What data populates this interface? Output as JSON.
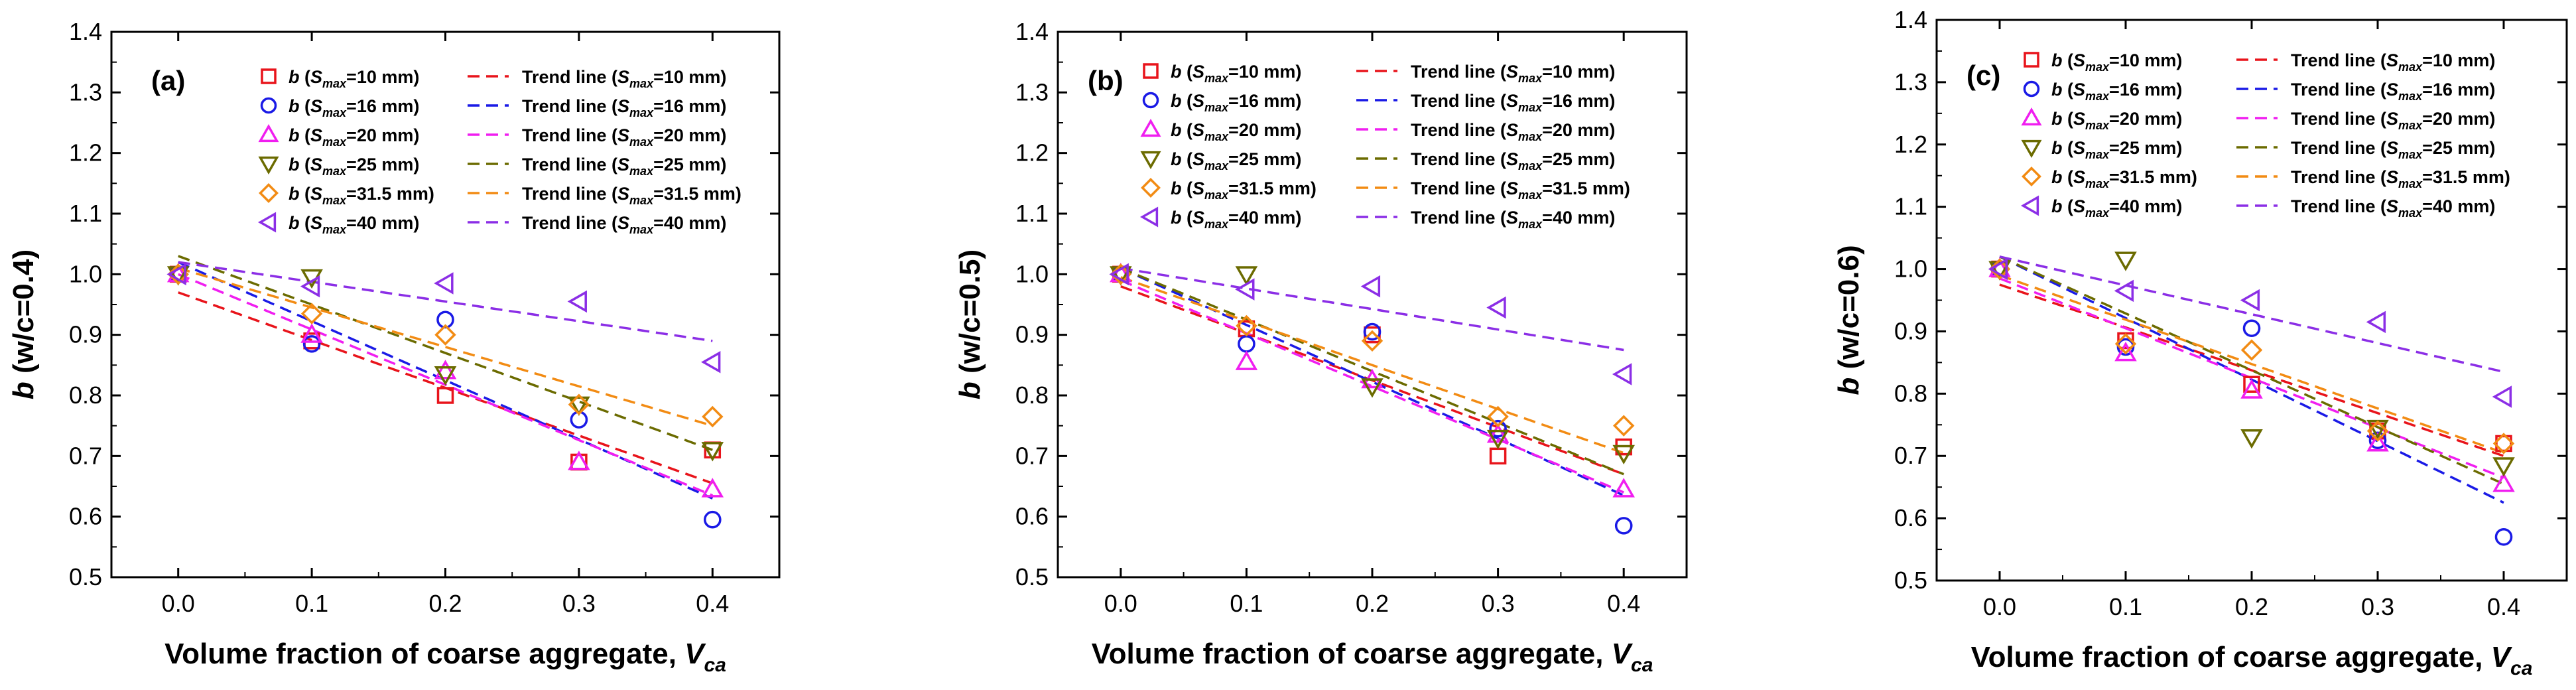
{
  "legend_labels": {
    "b": "b",
    "open": " (",
    "S": "S",
    "max": "max",
    "trend": "Trend line (",
    "close": ")"
  },
  "series_meta": [
    {
      "smax": "=10 mm",
      "color": "#e8141b",
      "marker": "square"
    },
    {
      "smax": "=16 mm",
      "color": "#1a1ae6",
      "marker": "circle"
    },
    {
      "smax": "=20 mm",
      "color": "#f01ef0",
      "marker": "triangle-up"
    },
    {
      "smax": "=25 mm",
      "color": "#6b6b00",
      "marker": "triangle-down"
    },
    {
      "smax": "=31.5 mm",
      "color": "#f28b13",
      "marker": "diamond"
    },
    {
      "smax": "=40 mm",
      "color": "#8b2ee6",
      "marker": "triangle-left"
    }
  ],
  "chart_data": [
    {
      "type": "scatter",
      "panel_label": "(a)",
      "xlabel": "Volume fraction of coarse aggregate, ",
      "xlabel_sym": "V",
      "xlabel_sub": "ca",
      "ylabel_sym": "b",
      "ylabel_rest": " (w/c=0.4)",
      "xlim": [
        -0.05,
        0.45
      ],
      "ylim": [
        0.5,
        1.4
      ],
      "xticks": [
        "0.0",
        "0.1",
        "0.2",
        "0.3",
        "0.4"
      ],
      "yticks": [
        "0.5",
        "0.6",
        "0.7",
        "0.8",
        "0.9",
        "1.0",
        "1.1",
        "1.2",
        "1.3",
        "1.4"
      ],
      "x": [
        0,
        0.1,
        0.2,
        0.3,
        0.4
      ],
      "series": [
        {
          "name": "Smax=10 mm",
          "values": [
            1.0,
            0.89,
            0.8,
            0.69,
            0.71
          ],
          "trend": [
            0.97,
            0.655
          ]
        },
        {
          "name": "Smax=16 mm",
          "values": [
            1.0,
            0.885,
            0.925,
            0.76,
            0.595
          ],
          "trend": [
            1.02,
            0.63
          ]
        },
        {
          "name": "Smax=20 mm",
          "values": [
            1.0,
            0.9,
            0.84,
            0.69,
            0.645
          ],
          "trend": [
            1.0,
            0.635
          ]
        },
        {
          "name": "Smax=25 mm",
          "values": [
            1.0,
            0.995,
            0.835,
            0.785,
            0.71
          ],
          "trend": [
            1.03,
            0.71
          ]
        },
        {
          "name": "Smax=31.5 mm",
          "values": [
            1.0,
            0.935,
            0.9,
            0.785,
            0.765
          ],
          "trend": [
            1.01,
            0.75
          ]
        },
        {
          "name": "Smax=40 mm",
          "values": [
            1.0,
            0.98,
            0.985,
            0.955,
            0.855
          ],
          "trend": [
            1.02,
            0.89
          ]
        }
      ]
    },
    {
      "type": "scatter",
      "panel_label": "(b)",
      "xlabel": "Volume fraction of coarse aggregate, ",
      "xlabel_sym": "V",
      "xlabel_sub": "ca",
      "ylabel_sym": "b",
      "ylabel_rest": " (w/c=0.5)",
      "xlim": [
        -0.05,
        0.45
      ],
      "ylim": [
        0.5,
        1.4
      ],
      "xticks": [
        "0.0",
        "0.1",
        "0.2",
        "0.3",
        "0.4"
      ],
      "yticks": [
        "0.5",
        "0.6",
        "0.7",
        "0.8",
        "0.9",
        "1.0",
        "1.1",
        "1.2",
        "1.3",
        "1.4"
      ],
      "x": [
        0,
        0.1,
        0.2,
        0.3,
        0.4
      ],
      "series": [
        {
          "name": "Smax=10 mm",
          "values": [
            1.0,
            0.91,
            0.9,
            0.7,
            0.715
          ],
          "trend": [
            0.98,
            0.67
          ]
        },
        {
          "name": "Smax=16 mm",
          "values": [
            1.0,
            0.885,
            0.905,
            0.745,
            0.585
          ],
          "trend": [
            1.01,
            0.635
          ]
        },
        {
          "name": "Smax=20 mm",
          "values": [
            1.0,
            0.855,
            0.825,
            0.735,
            0.645
          ],
          "trend": [
            0.99,
            0.64
          ]
        },
        {
          "name": "Smax=25 mm",
          "values": [
            1.0,
            1.0,
            0.815,
            0.73,
            0.705
          ],
          "trend": [
            1.01,
            0.67
          ]
        },
        {
          "name": "Smax=31.5 mm",
          "values": [
            1.0,
            0.915,
            0.89,
            0.765,
            0.75
          ],
          "trend": [
            0.995,
            0.705
          ]
        },
        {
          "name": "Smax=40 mm",
          "values": [
            1.0,
            0.975,
            0.98,
            0.945,
            0.835
          ],
          "trend": [
            1.01,
            0.875
          ]
        }
      ]
    },
    {
      "type": "scatter",
      "panel_label": "(c)",
      "xlabel": "Volume fraction of coarse aggregate, ",
      "xlabel_sym": "V",
      "xlabel_sub": "ca",
      "ylabel_sym": "b",
      "ylabel_rest": " (w/c=0.6)",
      "xlim": [
        -0.05,
        0.45
      ],
      "ylim": [
        0.5,
        1.4
      ],
      "xticks": [
        "0.0",
        "0.1",
        "0.2",
        "0.3",
        "0.4"
      ],
      "yticks": [
        "0.5",
        "0.6",
        "0.7",
        "0.8",
        "0.9",
        "1.0",
        "1.1",
        "1.2",
        "1.3",
        "1.4"
      ],
      "x": [
        0,
        0.1,
        0.2,
        0.3,
        0.4
      ],
      "series": [
        {
          "name": "Smax=10 mm",
          "values": [
            1.0,
            0.885,
            0.815,
            0.74,
            0.72
          ],
          "trend": [
            0.975,
            0.7
          ]
        },
        {
          "name": "Smax=16 mm",
          "values": [
            1.0,
            0.875,
            0.905,
            0.725,
            0.57
          ],
          "trend": [
            1.02,
            0.625
          ]
        },
        {
          "name": "Smax=20 mm",
          "values": [
            1.0,
            0.865,
            0.805,
            0.72,
            0.655
          ],
          "trend": [
            0.985,
            0.665
          ]
        },
        {
          "name": "Smax=25 mm",
          "values": [
            1.0,
            1.015,
            0.73,
            0.745,
            0.685
          ],
          "trend": [
            1.02,
            0.655
          ]
        },
        {
          "name": "Smax=31.5 mm",
          "values": [
            1.0,
            0.88,
            0.87,
            0.74,
            0.72
          ],
          "trend": [
            0.99,
            0.705
          ]
        },
        {
          "name": "Smax=40 mm",
          "values": [
            1.0,
            0.965,
            0.95,
            0.915,
            0.795
          ],
          "trend": [
            1.02,
            0.835
          ]
        }
      ]
    }
  ]
}
